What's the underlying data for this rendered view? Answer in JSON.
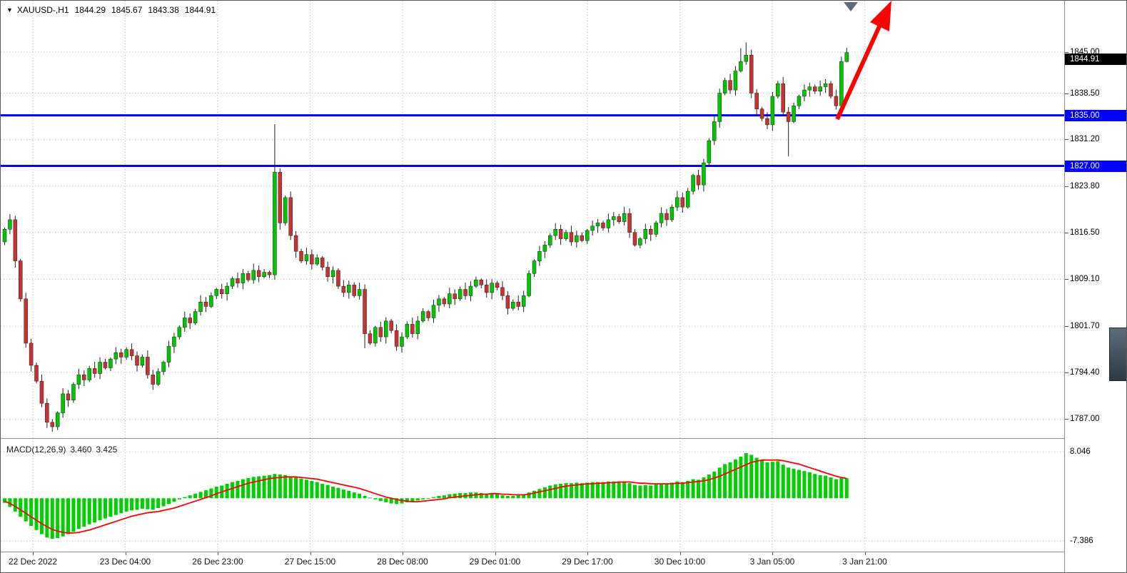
{
  "header": {
    "collapse_icon": "▼",
    "symbol": "XAUUSD-,H1",
    "open": "1844.29",
    "high": "1845.67",
    "low": "1843.38",
    "close": "1844.91"
  },
  "price_axis": {
    "ticks": [
      {
        "label": "1845.00",
        "value": 1845.0
      },
      {
        "label": "1838.50",
        "value": 1838.5
      },
      {
        "label": "1831.20",
        "value": 1831.2
      },
      {
        "label": "1823.80",
        "value": 1823.8
      },
      {
        "label": "1816.50",
        "value": 1816.5
      },
      {
        "label": "1809.10",
        "value": 1809.1
      },
      {
        "label": "1801.70",
        "value": 1801.7
      },
      {
        "label": "1794.40",
        "value": 1794.4
      },
      {
        "label": "1787.00",
        "value": 1787.0
      }
    ],
    "current_price_label": "1844.91",
    "current_price_value": 1844.91
  },
  "levels": [
    {
      "label": "1835.00",
      "value": 1835.0
    },
    {
      "label": "1827.00",
      "value": 1827.0
    }
  ],
  "time_axis": {
    "labels": [
      "22 Dec 2022",
      "23 Dec 04:00",
      "26 Dec 23:00",
      "27 Dec 15:00",
      "28 Dec 08:00",
      "29 Dec 01:00",
      "29 Dec 17:00",
      "30 Dec 10:00",
      "3 Jan 05:00",
      "3 Jan 21:00"
    ]
  },
  "macd_panel": {
    "name": "MACD(12,26,9)",
    "value_main": "3.460",
    "value_signal": "3.425",
    "axis_max_label": "8.046",
    "axis_min_label": "-7.386",
    "axis_max_value": 8.046,
    "axis_min_value": -7.386
  },
  "colors": {
    "bull": "#00c800",
    "bear": "#c83232",
    "wick": "#202020",
    "macd_bar": "#00d000",
    "signal_line": "#ff0000",
    "level_blue": "#0000ff",
    "arrow": "#ff0000",
    "badge_current_bg": "#000000"
  },
  "chart_data": [
    {
      "type": "candlestick",
      "title": "XAUUSD- H1",
      "x_labels": [
        "22 Dec 2022",
        "23 Dec 04:00",
        "26 Dec 23:00",
        "27 Dec 15:00",
        "28 Dec 08:00",
        "29 Dec 01:00",
        "29 Dec 17:00",
        "30 Dec 10:00",
        "3 Jan 05:00",
        "3 Jan 21:00"
      ],
      "ylim": [
        1784.0,
        1853.1
      ],
      "y_ticks": [
        1845.0,
        1838.5,
        1831.2,
        1823.8,
        1816.5,
        1809.1,
        1801.7,
        1794.4,
        1787.0
      ],
      "levels": [
        1835.0,
        1827.0
      ],
      "last_price": 1844.91,
      "first_open": 1815.0,
      "closes": [
        1817.0,
        1818.5,
        1812.0,
        1806.0,
        1799.0,
        1795.5,
        1793.0,
        1789.5,
        1786.5,
        1785.8,
        1788.0,
        1791.0,
        1790.0,
        1792.5,
        1794.0,
        1793.2,
        1795.0,
        1794.2,
        1796.0,
        1795.1,
        1796.5,
        1797.5,
        1796.8,
        1798.0,
        1797.0,
        1795.5,
        1796.8,
        1794.0,
        1792.5,
        1794.5,
        1796.0,
        1798.5,
        1800.0,
        1801.5,
        1803.0,
        1802.2,
        1804.0,
        1805.5,
        1804.8,
        1806.5,
        1807.5,
        1806.8,
        1808.0,
        1809.2,
        1808.5,
        1810.0,
        1809.0,
        1810.5,
        1809.5,
        1810.2,
        1809.8,
        1826.0,
        1818.0,
        1822.0,
        1816.0,
        1813.5,
        1812.0,
        1813.0,
        1811.5,
        1812.5,
        1811.0,
        1809.5,
        1810.5,
        1808.0,
        1807.0,
        1808.2,
        1806.5,
        1807.5,
        1800.5,
        1799.0,
        1801.5,
        1800.0,
        1802.5,
        1801.0,
        1798.5,
        1800.0,
        1802.0,
        1800.5,
        1802.5,
        1804.0,
        1803.0,
        1805.0,
        1806.0,
        1805.2,
        1806.8,
        1806.0,
        1807.5,
        1806.5,
        1808.0,
        1809.0,
        1808.2,
        1807.0,
        1808.5,
        1807.8,
        1806.5,
        1804.5,
        1805.5,
        1804.8,
        1806.5,
        1810.0,
        1812.0,
        1813.5,
        1814.5,
        1816.0,
        1817.0,
        1815.5,
        1816.5,
        1815.0,
        1816.0,
        1815.2,
        1816.8,
        1817.5,
        1818.0,
        1817.2,
        1818.5,
        1819.0,
        1818.2,
        1819.5,
        1816.5,
        1814.5,
        1815.5,
        1817.0,
        1816.2,
        1818.0,
        1819.5,
        1818.5,
        1820.5,
        1822.0,
        1820.5,
        1823.0,
        1825.5,
        1824.0,
        1827.5,
        1831.0,
        1834.0,
        1838.5,
        1840.5,
        1839.0,
        1842.0,
        1843.5,
        1844.5,
        1838.5,
        1836.0,
        1834.5,
        1833.5,
        1838.0,
        1840.0,
        1835.5,
        1834.0,
        1836.5,
        1838.0,
        1839.0,
        1839.5,
        1838.8,
        1839.5,
        1840.0,
        1838.0,
        1836.5,
        1843.5,
        1844.91
      ],
      "wick_overrides": {
        "9": {
          "l": 1785.0
        },
        "51": {
          "h": 1833.6
        },
        "68": {
          "l": 1798.2
        },
        "139": {
          "h": 1845.6
        },
        "140": {
          "h": 1846.5
        },
        "148": {
          "l": 1828.5
        },
        "159": {
          "h": 1845.67,
          "l": 1843.38
        }
      }
    },
    {
      "type": "bar",
      "title": "MACD(12,26,9)",
      "ylim": [
        -9.1,
        9.9
      ],
      "axis_labels": {
        "max": 8.046,
        "min": -7.386
      },
      "readout": {
        "macd": 3.46,
        "signal": 3.425
      },
      "values": [
        -0.8,
        -1.5,
        -2.3,
        -3.2,
        -4.0,
        -4.8,
        -5.5,
        -6.2,
        -6.8,
        -7.0,
        -6.9,
        -6.6,
        -6.2,
        -5.8,
        -5.3,
        -4.9,
        -4.5,
        -4.2,
        -3.8,
        -3.5,
        -3.2,
        -2.9,
        -2.6,
        -2.3,
        -2.1,
        -2.0,
        -1.8,
        -1.9,
        -2.0,
        -1.7,
        -1.4,
        -1.0,
        -0.6,
        -0.2,
        0.2,
        0.5,
        0.8,
        1.1,
        1.4,
        1.7,
        2.0,
        2.2,
        2.5,
        2.8,
        3.0,
        3.3,
        3.5,
        3.7,
        3.8,
        3.9,
        4.0,
        4.2,
        4.1,
        4.0,
        3.8,
        3.6,
        3.4,
        3.2,
        3.0,
        2.8,
        2.5,
        2.3,
        2.0,
        1.8,
        1.5,
        1.3,
        1.0,
        0.8,
        0.4,
        0.1,
        -0.2,
        -0.5,
        -0.7,
        -0.9,
        -1.0,
        -0.9,
        -0.7,
        -0.6,
        -0.4,
        -0.2,
        0.0,
        0.2,
        0.4,
        0.5,
        0.7,
        0.8,
        0.9,
        0.9,
        1.0,
        1.0,
        0.9,
        0.8,
        0.8,
        0.7,
        0.5,
        0.4,
        0.4,
        0.5,
        0.7,
        1.0,
        1.3,
        1.6,
        1.9,
        2.2,
        2.4,
        2.5,
        2.6,
        2.6,
        2.7,
        2.6,
        2.7,
        2.8,
        2.8,
        2.8,
        2.9,
        2.9,
        2.8,
        2.9,
        2.6,
        2.3,
        2.2,
        2.3,
        2.2,
        2.4,
        2.5,
        2.5,
        2.7,
        2.9,
        2.8,
        3.0,
        3.3,
        3.2,
        3.6,
        4.1,
        4.6,
        5.3,
        5.9,
        6.2,
        6.7,
        7.2,
        7.8,
        7.5,
        7.0,
        6.6,
        6.2,
        6.3,
        6.4,
        5.8,
        5.3,
        5.1,
        4.9,
        4.7,
        4.5,
        4.2,
        4.0,
        3.9,
        3.6,
        3.3,
        3.5,
        3.46
      ],
      "signal": [
        -0.5,
        -0.9,
        -1.4,
        -2.0,
        -2.6,
        -3.2,
        -3.8,
        -4.4,
        -4.9,
        -5.4,
        -5.7,
        -5.9,
        -6.0,
        -6.0,
        -5.9,
        -5.7,
        -5.5,
        -5.2,
        -4.9,
        -4.6,
        -4.3,
        -4.0,
        -3.7,
        -3.4,
        -3.1,
        -2.9,
        -2.7,
        -2.5,
        -2.4,
        -2.3,
        -2.1,
        -1.9,
        -1.7,
        -1.4,
        -1.1,
        -0.8,
        -0.5,
        -0.2,
        0.1,
        0.4,
        0.8,
        1.1,
        1.4,
        1.7,
        2.0,
        2.3,
        2.6,
        2.8,
        3.0,
        3.2,
        3.4,
        3.5,
        3.6,
        3.7,
        3.7,
        3.7,
        3.6,
        3.5,
        3.4,
        3.3,
        3.1,
        2.9,
        2.7,
        2.5,
        2.3,
        2.1,
        1.9,
        1.7,
        1.4,
        1.1,
        0.8,
        0.5,
        0.2,
        0.0,
        -0.2,
        -0.4,
        -0.5,
        -0.6,
        -0.6,
        -0.5,
        -0.4,
        -0.3,
        -0.2,
        -0.1,
        0.1,
        0.2,
        0.3,
        0.4,
        0.5,
        0.6,
        0.7,
        0.7,
        0.8,
        0.8,
        0.7,
        0.7,
        0.6,
        0.6,
        0.6,
        0.7,
        0.9,
        1.1,
        1.3,
        1.5,
        1.7,
        1.9,
        2.1,
        2.2,
        2.3,
        2.4,
        2.5,
        2.5,
        2.6,
        2.6,
        2.7,
        2.7,
        2.8,
        2.8,
        2.8,
        2.7,
        2.6,
        2.6,
        2.5,
        2.5,
        2.5,
        2.5,
        2.5,
        2.6,
        2.6,
        2.7,
        2.8,
        2.9,
        3.0,
        3.2,
        3.5,
        3.8,
        4.2,
        4.6,
        5.0,
        5.4,
        5.8,
        6.2,
        6.4,
        6.6,
        6.6,
        6.6,
        6.6,
        6.5,
        6.3,
        6.1,
        5.9,
        5.6,
        5.3,
        5.0,
        4.7,
        4.4,
        4.1,
        3.8,
        3.6,
        3.425
      ]
    }
  ]
}
